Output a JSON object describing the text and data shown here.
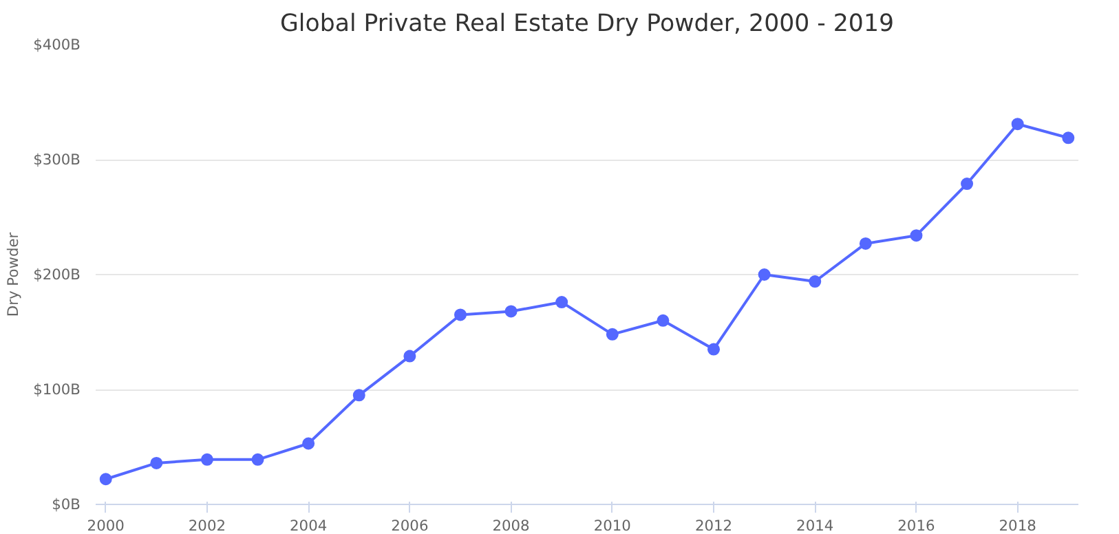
{
  "chart_data": {
    "type": "line",
    "title": "Global Private Real Estate Dry Powder, 2000 - 2019",
    "ylabel": "Dry Powder",
    "x": [
      2000,
      2001,
      2002,
      2003,
      2004,
      2005,
      2006,
      2007,
      2008,
      2009,
      2010,
      2011,
      2012,
      2013,
      2014,
      2015,
      2016,
      2017,
      2018,
      2019
    ],
    "series": [
      {
        "color": "#5468ff",
        "values": [
          22,
          36,
          39,
          39,
          53,
          95,
          129,
          165,
          168,
          176,
          148,
          160,
          135,
          200,
          194,
          227,
          234,
          279,
          331,
          319
        ]
      }
    ],
    "xlim": [
      1999.8,
      2019.2
    ],
    "xticks": [
      2000,
      2002,
      2004,
      2006,
      2008,
      2010,
      2012,
      2014,
      2016,
      2018
    ],
    "ylim": [
      0,
      400
    ],
    "yticks": [
      {
        "value": 0,
        "label": "$0B"
      },
      {
        "value": 100,
        "label": "$100B"
      },
      {
        "value": 200,
        "label": "$200B"
      },
      {
        "value": 300,
        "label": "$300B"
      },
      {
        "value": 400,
        "label": "$400B"
      }
    ],
    "grid": "y",
    "marker": "circle",
    "line_style": "solid"
  }
}
